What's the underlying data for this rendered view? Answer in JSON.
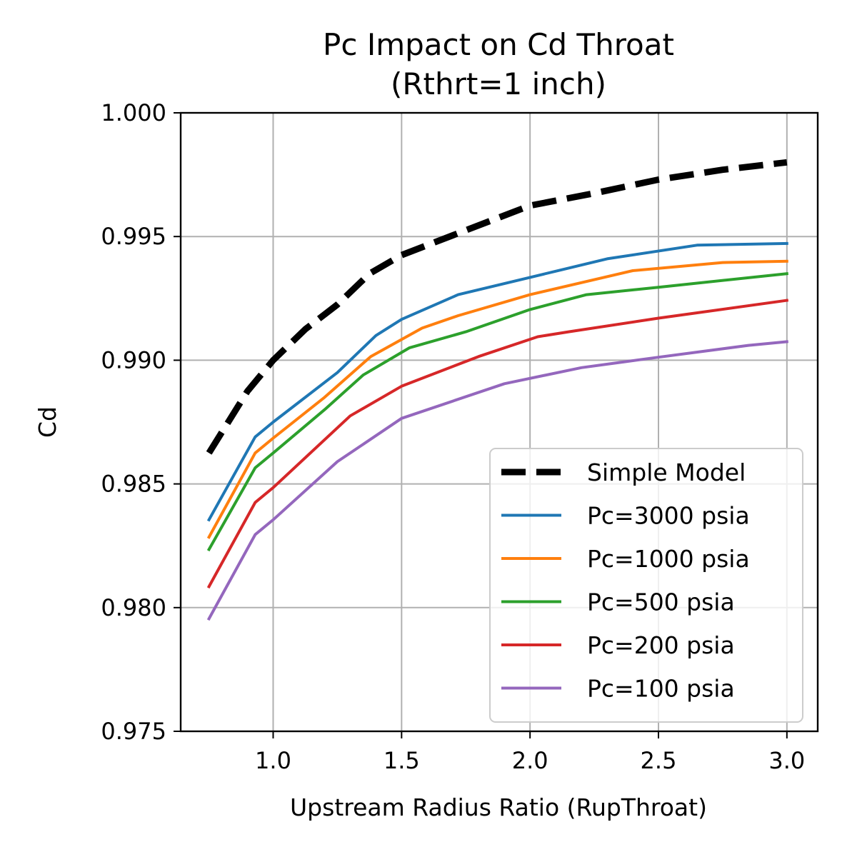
{
  "chart_data": {
    "type": "line",
    "title": "Pc Impact on Cd Throat",
    "subtitle": "(Rthrt=1 inch)",
    "xlabel": "Upstream Radius Ratio (RupThroat)",
    "ylabel": "Cd",
    "xlim": [
      0.64,
      3.12
    ],
    "ylim": [
      0.975,
      1.0
    ],
    "xticks": [
      1.0,
      1.5,
      2.0,
      2.5,
      3.0
    ],
    "xtick_labels": [
      "1.0",
      "1.5",
      "2.0",
      "2.5",
      "3.0"
    ],
    "yticks": [
      0.975,
      0.98,
      0.985,
      0.99,
      0.995,
      1.0
    ],
    "ytick_labels": [
      "0.975",
      "0.980",
      "0.985",
      "0.990",
      "0.995",
      "1.000"
    ],
    "grid": true,
    "legend_position": "lower-right",
    "series": [
      {
        "name": "Simple Model",
        "color": "#000000",
        "dashed": true,
        "x": [
          0.75,
          0.9,
          1.0,
          1.125,
          1.25,
          1.375,
          1.5,
          1.75,
          2.0,
          2.25,
          2.5,
          2.75,
          3.0
        ],
        "y": [
          0.98625,
          0.98875,
          0.99,
          0.99125,
          0.99225,
          0.9935,
          0.99425,
          0.99525,
          0.99625,
          0.99675,
          0.9973,
          0.9977,
          0.998
        ]
      },
      {
        "name": "Pc=3000 psia",
        "color": "#1f77b4",
        "dashed": false,
        "x": [
          0.75,
          0.93,
          1.0,
          1.25,
          1.4,
          1.5,
          1.72,
          2.0,
          2.3,
          2.65,
          3.0
        ],
        "y": [
          0.98355,
          0.9869,
          0.9875,
          0.9895,
          0.991,
          0.99165,
          0.99265,
          0.99335,
          0.9941,
          0.99465,
          0.99472
        ]
      },
      {
        "name": "Pc=1000 psia",
        "color": "#ff7f0e",
        "dashed": false,
        "x": [
          0.75,
          0.93,
          1.0,
          1.2,
          1.38,
          1.58,
          1.72,
          2.0,
          2.4,
          2.75,
          3.0
        ],
        "y": [
          0.98285,
          0.98625,
          0.98685,
          0.9885,
          0.99015,
          0.9913,
          0.9918,
          0.99265,
          0.99362,
          0.99395,
          0.994
        ]
      },
      {
        "name": "Pc=500 psia",
        "color": "#2ca02c",
        "dashed": false,
        "x": [
          0.75,
          0.93,
          1.0,
          1.2,
          1.35,
          1.53,
          1.75,
          2.0,
          2.22,
          2.5,
          3.0
        ],
        "y": [
          0.98235,
          0.98565,
          0.98625,
          0.988,
          0.9894,
          0.9905,
          0.99115,
          0.99205,
          0.99265,
          0.99295,
          0.9935
        ]
      },
      {
        "name": "Pc=200 psia",
        "color": "#d62728",
        "dashed": false,
        "x": [
          0.75,
          0.93,
          1.0,
          1.3,
          1.5,
          1.8,
          2.03,
          2.15,
          2.5,
          3.0
        ],
        "y": [
          0.98085,
          0.98425,
          0.98485,
          0.98775,
          0.98895,
          0.99015,
          0.99095,
          0.99115,
          0.9917,
          0.99242
        ]
      },
      {
        "name": "Pc=100 psia",
        "color": "#9467bd",
        "dashed": false,
        "x": [
          0.75,
          0.93,
          1.0,
          1.25,
          1.5,
          1.9,
          2.2,
          2.5,
          2.85,
          3.0
        ],
        "y": [
          0.97955,
          0.98295,
          0.98355,
          0.9859,
          0.98765,
          0.98905,
          0.9897,
          0.99012,
          0.9906,
          0.99075
        ]
      }
    ]
  }
}
